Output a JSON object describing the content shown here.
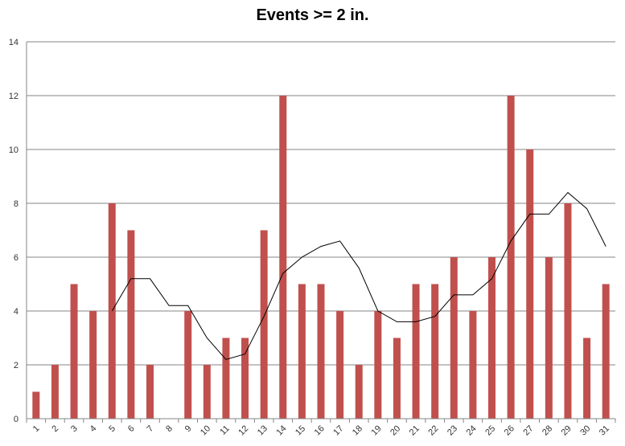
{
  "chart_data": {
    "type": "bar",
    "title": "Events >= 2 in.",
    "xlabel": "",
    "ylabel": "",
    "ylim": [
      0,
      14
    ],
    "ytick_step": 2,
    "grid": true,
    "categories": [
      "1",
      "2",
      "3",
      "4",
      "5",
      "6",
      "7",
      "8",
      "9",
      "10",
      "11",
      "12",
      "13",
      "14",
      "15",
      "16",
      "17",
      "18",
      "19",
      "20",
      "21",
      "22",
      "23",
      "24",
      "25",
      "26",
      "27",
      "28",
      "29",
      "30",
      "31"
    ],
    "series": [
      {
        "type": "bar",
        "color": "#c0504d",
        "values": [
          1,
          2,
          5,
          4,
          8,
          7,
          2,
          0,
          4,
          2,
          3,
          3,
          7,
          12,
          5,
          5,
          4,
          2,
          4,
          3,
          5,
          5,
          6,
          4,
          6,
          12,
          10,
          6,
          8,
          3,
          5
        ]
      },
      {
        "type": "line",
        "color": "#000000",
        "values": [
          null,
          null,
          null,
          null,
          4.0,
          5.2,
          5.2,
          4.2,
          4.2,
          3.0,
          2.2,
          2.4,
          3.8,
          5.4,
          6.0,
          6.4,
          6.6,
          5.6,
          4.0,
          3.6,
          3.6,
          3.8,
          4.6,
          4.6,
          5.2,
          6.6,
          7.6,
          7.6,
          8.4,
          7.8,
          6.4
        ]
      }
    ]
  }
}
